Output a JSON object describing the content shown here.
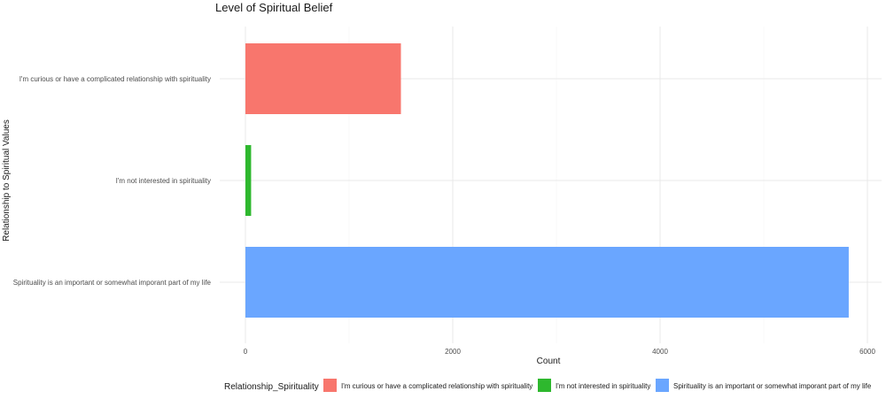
{
  "chart_data": {
    "type": "bar",
    "orientation": "horizontal",
    "title": "Level of Spiritual Belief",
    "xlabel": "Count",
    "ylabel": "Relationship to Spiritual Values",
    "categories": [
      "I'm curious or have a complicated relationship with spirituality",
      "I'm not interested in spirituality",
      "Spirituality is an important or somewhat imporant part of my life"
    ],
    "values": [
      1500,
      55,
      5820
    ],
    "colors": [
      "#F8766D",
      "#2EB82E",
      "#6AA6FF"
    ],
    "xlim": [
      0,
      6000
    ],
    "x_ticks": [
      0,
      2000,
      4000,
      6000
    ],
    "grid": true,
    "legend": {
      "title": "Relationship_Spirituality",
      "position": "bottom",
      "entries": [
        "I'm curious or have a complicated relationship with spirituality",
        "I'm not interested in spirituality",
        "Spirituality is an important or somewhat imporant part of my life"
      ]
    }
  }
}
